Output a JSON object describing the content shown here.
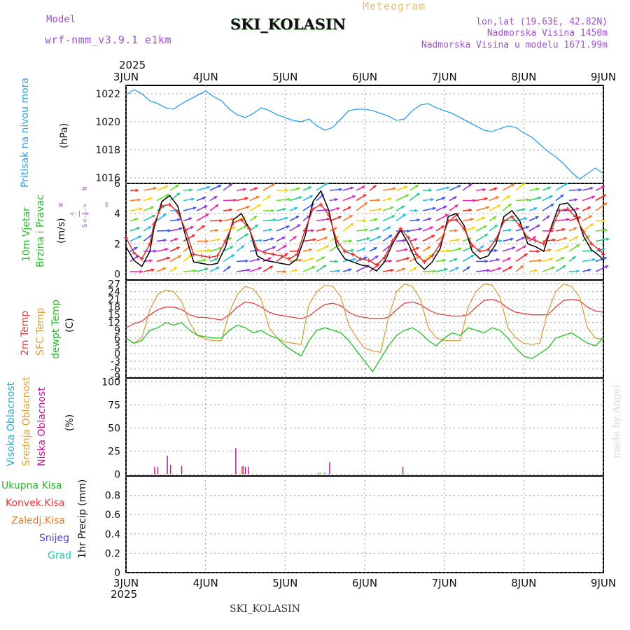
{
  "header": {
    "model_label": "Model",
    "model_name": "wrf-nmm_v3.9.1 e1km",
    "station": "SKI_KOLASIN",
    "product": "Meteogram",
    "lonlat": "lon,lat (19.63E, 42.82N)",
    "elevation": "Nadmorska Visina 1450m",
    "model_elevation": "Nadmorska Visina u modelu 1671.99m"
  },
  "footer": {
    "station": "SKI_KOLASIN",
    "credit": "made by Angel"
  },
  "colors": {
    "pressure": "#2aa0e8",
    "wind_speed": "#000000",
    "gust": "#e03030",
    "temp2m": "#e04040",
    "sfc_temp": "#d8a040",
    "dewpt": "#22c022",
    "high_cloud": "#22aadd",
    "mid_cloud": "#e0a030",
    "low_cloud": "#cc1199",
    "total_precip": "#22bb22",
    "conv_precip": "#ee3333",
    "frozen": "#ee7722",
    "snow": "#4444dd",
    "hail": "#22ccaa"
  },
  "chart_data": [
    {
      "type": "line",
      "panel": "pressure",
      "title": "Pritisak na nivou mora",
      "ylabel": "(hPa)",
      "year": "2025",
      "x_ticks": [
        "3JUN",
        "4JUN",
        "5JUN",
        "6JUN",
        "7JUN",
        "8JUN",
        "9JUN"
      ],
      "xlim": [
        0,
        6
      ],
      "ylim": [
        1015.6,
        1022.6
      ],
      "y_ticks": [
        1016,
        1018,
        1020,
        1022
      ],
      "grid": true,
      "series": [
        {
          "color": "#2aa0e8",
          "x": [
            0,
            0.1,
            0.2,
            0.3,
            0.4,
            0.5,
            0.6,
            0.7,
            0.8,
            0.9,
            1.0,
            1.1,
            1.2,
            1.3,
            1.4,
            1.5,
            1.6,
            1.7,
            1.8,
            1.9,
            2.0,
            2.1,
            2.2,
            2.3,
            2.4,
            2.5,
            2.6,
            2.7,
            2.8,
            2.9,
            3.0,
            3.1,
            3.2,
            3.3,
            3.4,
            3.5,
            3.6,
            3.7,
            3.8,
            3.9,
            4.0,
            4.1,
            4.2,
            4.3,
            4.4,
            4.5,
            4.6,
            4.7,
            4.8,
            4.9,
            5.0,
            5.1,
            5.2,
            5.3,
            5.4,
            5.5,
            5.6,
            5.7,
            5.8,
            5.9,
            6.0
          ],
          "y": [
            1021.9,
            1022.3,
            1022.0,
            1021.5,
            1021.3,
            1021.0,
            1020.9,
            1021.3,
            1021.6,
            1021.9,
            1022.2,
            1021.8,
            1021.5,
            1020.9,
            1020.5,
            1020.3,
            1020.6,
            1021.0,
            1020.8,
            1020.5,
            1020.3,
            1020.1,
            1020.0,
            1020.2,
            1019.7,
            1019.4,
            1019.6,
            1020.2,
            1020.8,
            1020.9,
            1020.9,
            1020.8,
            1020.6,
            1020.4,
            1020.1,
            1020.2,
            1020.8,
            1021.2,
            1021.3,
            1021.0,
            1020.8,
            1020.6,
            1020.3,
            1020.0,
            1019.7,
            1019.4,
            1019.3,
            1019.5,
            1019.7,
            1019.6,
            1019.2,
            1018.9,
            1018.4,
            1017.9,
            1017.5,
            1017.0,
            1016.4,
            1015.9,
            1016.3,
            1016.7,
            1016.3
          ]
        }
      ]
    },
    {
      "type": "line",
      "panel": "wind",
      "title": "10m Vjetar",
      "subtitle": "Brzina i Pravac",
      "ylabel": "(m/s)",
      "compass": {
        "n": "N",
        "s": "S",
        "w": "W",
        "e": "E",
        "arrows": "<-|->"
      },
      "x_ticks": [
        "3JUN",
        "4JUN",
        "5JUN",
        "6JUN",
        "7JUN",
        "8JUN",
        "9JUN"
      ],
      "xlim": [
        0,
        6
      ],
      "ylim": [
        -0.4,
        6
      ],
      "y_ticks": [
        0,
        2,
        4,
        6
      ],
      "series": [
        {
          "name": "speed",
          "color": "#000000",
          "x": [
            0,
            0.1,
            0.2,
            0.3,
            0.35,
            0.45,
            0.55,
            0.65,
            0.75,
            0.85,
            0.95,
            1.05,
            1.15,
            1.25,
            1.35,
            1.45,
            1.55,
            1.65,
            1.75,
            1.85,
            1.95,
            2.05,
            2.15,
            2.25,
            2.35,
            2.45,
            2.55,
            2.65,
            2.75,
            2.85,
            2.95,
            3.05,
            3.15,
            3.25,
            3.35,
            3.45,
            3.55,
            3.65,
            3.75,
            3.85,
            3.95,
            4.05,
            4.15,
            4.25,
            4.35,
            4.45,
            4.55,
            4.65,
            4.75,
            4.85,
            4.95,
            5.05,
            5.15,
            5.25,
            5.35,
            5.45,
            5.55,
            5.65,
            5.75,
            5.85,
            5.95,
            6.0
          ],
          "y": [
            1.8,
            0.9,
            0.5,
            1.5,
            3.0,
            4.8,
            5.2,
            4.5,
            2.5,
            0.8,
            0.7,
            0.6,
            0.7,
            1.8,
            3.6,
            4.0,
            3.0,
            1.2,
            0.9,
            0.8,
            0.7,
            0.6,
            1.0,
            2.5,
            4.8,
            5.5,
            4.2,
            1.8,
            1.0,
            0.8,
            0.6,
            0.5,
            0.2,
            0.8,
            2.0,
            2.9,
            2.0,
            0.8,
            0.3,
            0.8,
            1.7,
            3.8,
            4.0,
            3.2,
            1.5,
            1.0,
            1.2,
            2.0,
            3.8,
            4.2,
            3.5,
            2.0,
            1.8,
            1.5,
            3.2,
            4.6,
            4.7,
            4.1,
            2.5,
            1.6,
            1.2,
            0.9
          ]
        },
        {
          "name": "gust",
          "color": "#e03030",
          "x": [
            0,
            0.1,
            0.2,
            0.3,
            0.35,
            0.45,
            0.55,
            0.65,
            0.75,
            0.85,
            0.95,
            1.05,
            1.15,
            1.25,
            1.35,
            1.45,
            1.55,
            1.65,
            1.75,
            1.85,
            1.95,
            2.05,
            2.15,
            2.25,
            2.35,
            2.45,
            2.55,
            2.65,
            2.75,
            2.85,
            2.95,
            3.05,
            3.15,
            3.25,
            3.35,
            3.45,
            3.55,
            3.65,
            3.75,
            3.85,
            3.95,
            4.05,
            4.15,
            4.25,
            4.35,
            4.45,
            4.55,
            4.65,
            4.75,
            4.85,
            4.95,
            5.05,
            5.15,
            5.25,
            5.35,
            5.45,
            5.55,
            5.65,
            5.75,
            5.85,
            5.95,
            6.0
          ],
          "y": [
            2.4,
            1.4,
            1.0,
            2.0,
            3.3,
            4.5,
            4.6,
            4.1,
            2.9,
            1.3,
            1.2,
            1.1,
            1.2,
            2.2,
            3.4,
            3.6,
            3.0,
            1.6,
            1.4,
            1.3,
            1.2,
            1.0,
            1.3,
            2.9,
            4.3,
            4.6,
            3.9,
            2.2,
            1.5,
            1.3,
            1.0,
            0.9,
            0.6,
            1.1,
            2.2,
            3.0,
            2.4,
            1.3,
            0.8,
            1.2,
            2.0,
            3.5,
            3.6,
            3.0,
            1.9,
            1.5,
            1.6,
            2.3,
            3.5,
            3.8,
            3.2,
            2.4,
            2.2,
            2.0,
            3.0,
            4.2,
            4.3,
            3.8,
            2.8,
            2.0,
            1.6,
            1.3
          ]
        }
      ]
    },
    {
      "type": "line",
      "panel": "temperature",
      "labels": [
        "2m Temp",
        "SFC Temp",
        "dewpt Temp"
      ],
      "ylabel": "(C)",
      "x_ticks": [
        "3JUN",
        "4JUN",
        "5JUN",
        "6JUN",
        "7JUN",
        "8JUN",
        "9JUN"
      ],
      "xlim": [
        0,
        6
      ],
      "ylim": [
        -9.5,
        28.5
      ],
      "y_ticks": [
        -9,
        -6,
        -3,
        0,
        3,
        6,
        9,
        12,
        15,
        18,
        21,
        24,
        27
      ],
      "series": [
        {
          "name": "2m Temp",
          "color": "#e04040",
          "x": [
            0,
            0.1,
            0.2,
            0.3,
            0.4,
            0.5,
            0.6,
            0.7,
            0.8,
            0.9,
            1.0,
            1.1,
            1.2,
            1.3,
            1.4,
            1.5,
            1.6,
            1.7,
            1.8,
            1.9,
            2.0,
            2.1,
            2.2,
            2.3,
            2.4,
            2.5,
            2.6,
            2.7,
            2.8,
            2.9,
            3.0,
            3.1,
            3.2,
            3.3,
            3.4,
            3.5,
            3.6,
            3.7,
            3.8,
            3.9,
            4.0,
            4.1,
            4.2,
            4.3,
            4.4,
            4.5,
            4.6,
            4.7,
            4.8,
            4.9,
            5.0,
            5.1,
            5.2,
            5.3,
            5.4,
            5.5,
            5.6,
            5.7,
            5.8,
            5.9,
            6.0
          ],
          "y": [
            10,
            11.5,
            12.5,
            15,
            17,
            18,
            18,
            17,
            15,
            14,
            14,
            13.5,
            13,
            15,
            18,
            20,
            19.5,
            18,
            16,
            15,
            14.5,
            14,
            13.5,
            14.5,
            17,
            19,
            19.5,
            18.5,
            16,
            14.5,
            14,
            13.5,
            13.5,
            14,
            17,
            19.5,
            20,
            19,
            17,
            15.5,
            15,
            14.5,
            14.5,
            15,
            18,
            20.5,
            21,
            20,
            17.5,
            16,
            15.5,
            15,
            15,
            15,
            18,
            20.5,
            21,
            20.5,
            18,
            16.5,
            16
          ]
        },
        {
          "name": "SFC Temp",
          "color": "#d8a040",
          "x": [
            0,
            0.1,
            0.2,
            0.3,
            0.4,
            0.5,
            0.6,
            0.7,
            0.8,
            0.9,
            1.0,
            1.1,
            1.2,
            1.3,
            1.4,
            1.5,
            1.6,
            1.7,
            1.8,
            1.9,
            2.0,
            2.1,
            2.2,
            2.3,
            2.4,
            2.5,
            2.6,
            2.7,
            2.8,
            2.9,
            3.0,
            3.1,
            3.2,
            3.3,
            3.4,
            3.5,
            3.6,
            3.7,
            3.8,
            3.9,
            4.0,
            4.1,
            4.2,
            4.3,
            4.4,
            4.5,
            4.6,
            4.7,
            4.8,
            4.9,
            5.0,
            5.1,
            5.2,
            5.3,
            5.4,
            5.5,
            5.6,
            5.7,
            5.8,
            5.9,
            6.0
          ],
          "y": [
            6,
            4,
            6,
            17,
            23,
            24.5,
            24,
            20,
            12,
            7,
            5.5,
            5,
            5,
            16,
            23,
            26,
            25,
            21,
            10,
            6,
            4.5,
            4,
            3.5,
            19,
            24,
            26.5,
            26,
            22,
            11,
            6,
            2,
            1,
            0.5,
            14,
            24,
            27,
            26,
            21,
            10,
            6,
            5,
            5,
            5,
            18,
            24,
            27,
            26.5,
            22,
            10,
            6,
            4,
            3.5,
            4,
            16,
            24,
            27,
            26,
            22,
            10,
            6,
            5.5
          ]
        },
        {
          "name": "dewpt Temp",
          "color": "#22c022",
          "x": [
            0,
            0.1,
            0.2,
            0.3,
            0.4,
            0.5,
            0.6,
            0.7,
            0.8,
            0.9,
            1.0,
            1.1,
            1.2,
            1.3,
            1.4,
            1.5,
            1.6,
            1.7,
            1.8,
            1.9,
            2.0,
            2.1,
            2.2,
            2.3,
            2.4,
            2.5,
            2.6,
            2.7,
            2.8,
            2.9,
            3.0,
            3.1,
            3.2,
            3.3,
            3.4,
            3.5,
            3.6,
            3.7,
            3.8,
            3.9,
            4.0,
            4.1,
            4.2,
            4.3,
            4.4,
            4.5,
            4.6,
            4.7,
            4.8,
            4.9,
            5.0,
            5.1,
            5.2,
            5.3,
            5.4,
            5.5,
            5.6,
            5.7,
            5.8,
            5.9,
            6.0
          ],
          "y": [
            6,
            4,
            5,
            9,
            10,
            12,
            11,
            12,
            9,
            7,
            6.5,
            6,
            6,
            9,
            11,
            10,
            8,
            9,
            7,
            6,
            3,
            1,
            -1,
            5,
            9,
            10,
            9,
            8,
            5,
            1,
            -3,
            -7,
            -2,
            3,
            7,
            9,
            10,
            8,
            5,
            3,
            6,
            8,
            7,
            10,
            9,
            8,
            10,
            9,
            6,
            2,
            -1,
            -2,
            0,
            2,
            6,
            7,
            8,
            6,
            4,
            3,
            6
          ]
        }
      ]
    },
    {
      "type": "bar",
      "panel": "cloud",
      "labels": [
        "Visoka Oblacnost",
        "Srednja Oblacnost",
        "Niska Oblacnost"
      ],
      "ylabel": "(%)",
      "x_ticks": [
        "3JUN",
        "4JUN",
        "5JUN",
        "6JUN",
        "7JUN",
        "8JUN",
        "9JUN"
      ],
      "xlim": [
        0,
        6
      ],
      "ylim": [
        -2,
        104
      ],
      "y_ticks": [
        0,
        25,
        50,
        75,
        100
      ],
      "series": [
        {
          "name": "Niska Oblacnost",
          "color": "#cc1199",
          "x": [
            0.36,
            0.4,
            0.52,
            0.56,
            0.7,
            1.38,
            1.47,
            1.5,
            1.54,
            2.56,
            3.48
          ],
          "values": [
            8,
            8,
            20,
            10,
            9,
            28,
            9,
            8,
            8,
            13,
            8
          ]
        },
        {
          "name": "Srednja Oblacnost",
          "color": "#e0a030",
          "x": [
            1.45,
            2.45
          ],
          "values": [
            8,
            2
          ]
        },
        {
          "name": "Visoka Oblacnost",
          "color": "#22aadd",
          "x": [
            2.42,
            2.5
          ],
          "values": [
            2,
            2
          ]
        }
      ]
    },
    {
      "type": "bar",
      "panel": "precip",
      "labels": [
        "Ukupna Kisa",
        "Konvek.Kisa",
        "Zaledj.Kisa",
        "Snijeg",
        "Grad"
      ],
      "ylabel": "1hr Precip (mm)",
      "x_ticks": [
        "3JUN",
        "4JUN",
        "5JUN",
        "6JUN",
        "7JUN",
        "8JUN",
        "9JUN"
      ],
      "xlim": [
        0,
        6
      ],
      "ylim": [
        0,
        1.0
      ],
      "y_ticks": [
        0,
        0.2,
        0.4,
        0.6,
        0.8
      ],
      "year": "2025",
      "series": []
    }
  ]
}
